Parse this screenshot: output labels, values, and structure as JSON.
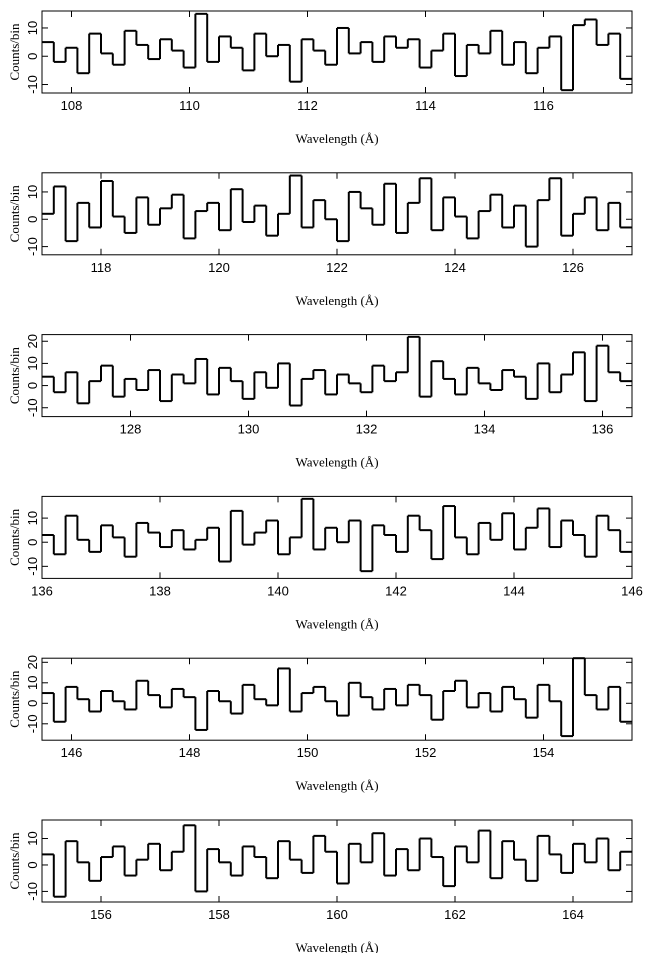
{
  "chart_data": [
    {
      "type": "histogram",
      "xlabel": "Wavelength (Å)",
      "ylabel": "Counts/bin",
      "color": "#000000",
      "bins": [
        107.5,
        107.7,
        107.9,
        108.1,
        108.3,
        108.5,
        108.7,
        108.9,
        109.1,
        109.3,
        109.5,
        109.7,
        109.9,
        110.1,
        110.3,
        110.5,
        110.7,
        110.9,
        111.1,
        111.3,
        111.5,
        111.7,
        111.9,
        112.1,
        112.3,
        112.5,
        112.7,
        112.9,
        113.1,
        113.3,
        113.5,
        113.7,
        113.9,
        114.1,
        114.3,
        114.5,
        114.7,
        114.9,
        115.1,
        115.3,
        115.5,
        115.7,
        115.9,
        116.1,
        116.3,
        116.5,
        116.7,
        116.9,
        117.1,
        117.3,
        117.5
      ],
      "values": [
        5,
        -2,
        3,
        -6,
        8,
        1,
        -3,
        9,
        4,
        -1,
        6,
        2,
        -4,
        15,
        -2,
        7,
        3,
        -5,
        8,
        0,
        4,
        -9,
        6,
        2,
        -3,
        10,
        1,
        5,
        -2,
        7,
        3,
        6,
        -4,
        2,
        8,
        -7,
        4,
        1,
        9,
        -3,
        5,
        -6,
        3,
        7,
        -12,
        11,
        13,
        4,
        8,
        -8
      ],
      "xlim": [
        107.5,
        117.5
      ],
      "xticks": [
        108,
        110,
        112,
        114,
        116
      ],
      "ylim": [
        -13,
        16
      ],
      "yticks": [
        -10,
        0,
        10
      ]
    },
    {
      "type": "histogram",
      "xlabel": "Wavelength (Å)",
      "ylabel": "Counts/bin",
      "color": "#000000",
      "bins": [
        117,
        117.2,
        117.4,
        117.6,
        117.8,
        118,
        118.2,
        118.4,
        118.6,
        118.8,
        119,
        119.2,
        119.4,
        119.6,
        119.8,
        120,
        120.2,
        120.4,
        120.6,
        120.8,
        121,
        121.2,
        121.4,
        121.6,
        121.8,
        122,
        122.2,
        122.4,
        122.6,
        122.8,
        123,
        123.2,
        123.4,
        123.6,
        123.8,
        124,
        124.2,
        124.4,
        124.6,
        124.8,
        125,
        125.2,
        125.4,
        125.6,
        125.8,
        126,
        126.2,
        126.4,
        126.6,
        126.8,
        127
      ],
      "values": [
        2,
        12,
        -8,
        6,
        -3,
        14,
        1,
        -5,
        8,
        -2,
        4,
        9,
        -7,
        3,
        6,
        -4,
        11,
        -1,
        5,
        -6,
        2,
        16,
        -3,
        7,
        0,
        -8,
        10,
        4,
        -2,
        13,
        -5,
        6,
        15,
        -4,
        8,
        1,
        -7,
        3,
        9,
        -3,
        5,
        -10,
        7,
        15,
        -6,
        2,
        8,
        -4,
        6,
        -3
      ],
      "xlim": [
        117,
        127
      ],
      "xticks": [
        118,
        120,
        122,
        124,
        126
      ],
      "ylim": [
        -13,
        17
      ],
      "yticks": [
        -10,
        0,
        10
      ]
    },
    {
      "type": "histogram",
      "xlabel": "Wavelength (Å)",
      "ylabel": "Counts/bin",
      "color": "#000000",
      "bins": [
        126.5,
        126.7,
        126.9,
        127.1,
        127.3,
        127.5,
        127.7,
        127.9,
        128.1,
        128.3,
        128.5,
        128.7,
        128.9,
        129.1,
        129.3,
        129.5,
        129.7,
        129.9,
        130.1,
        130.3,
        130.5,
        130.7,
        130.9,
        131.1,
        131.3,
        131.5,
        131.7,
        131.9,
        132.1,
        132.3,
        132.5,
        132.7,
        132.9,
        133.1,
        133.3,
        133.5,
        133.7,
        133.9,
        134.1,
        134.3,
        134.5,
        134.7,
        134.9,
        135.1,
        135.3,
        135.5,
        135.7,
        135.9,
        136.1,
        136.3,
        136.5
      ],
      "values": [
        4,
        -3,
        6,
        -8,
        2,
        9,
        -5,
        3,
        -2,
        7,
        -7,
        5,
        1,
        12,
        -4,
        8,
        2,
        -6,
        6,
        -1,
        10,
        -9,
        3,
        7,
        -4,
        5,
        1,
        -3,
        9,
        2,
        6,
        22,
        -5,
        11,
        3,
        -4,
        8,
        1,
        -2,
        7,
        4,
        -6,
        10,
        -3,
        5,
        15,
        -7,
        18,
        6,
        2
      ],
      "xlim": [
        126.5,
        136.5
      ],
      "xticks": [
        128,
        130,
        132,
        134,
        136
      ],
      "ylim": [
        -14,
        23
      ],
      "yticks": [
        -10,
        0,
        10,
        20
      ]
    },
    {
      "type": "histogram",
      "xlabel": "Wavelength (Å)",
      "ylabel": "Counts/bin",
      "color": "#000000",
      "bins": [
        136,
        136.2,
        136.4,
        136.6,
        136.8,
        137,
        137.2,
        137.4,
        137.6,
        137.8,
        138,
        138.2,
        138.4,
        138.6,
        138.8,
        139,
        139.2,
        139.4,
        139.6,
        139.8,
        140,
        140.2,
        140.4,
        140.6,
        140.8,
        141,
        141.2,
        141.4,
        141.6,
        141.8,
        142,
        142.2,
        142.4,
        142.6,
        142.8,
        143,
        143.2,
        143.4,
        143.6,
        143.8,
        144,
        144.2,
        144.4,
        144.6,
        144.8,
        145,
        145.2,
        145.4,
        145.6,
        145.8,
        146
      ],
      "values": [
        3,
        -5,
        11,
        1,
        -4,
        7,
        2,
        -6,
        8,
        4,
        -2,
        5,
        -3,
        1,
        6,
        -8,
        13,
        -1,
        4,
        9,
        -5,
        2,
        18,
        -3,
        6,
        0,
        9,
        -12,
        7,
        3,
        -4,
        11,
        5,
        -7,
        15,
        2,
        -5,
        8,
        1,
        12,
        -3,
        6,
        14,
        -2,
        9,
        3,
        -6,
        11,
        5,
        -4
      ],
      "xlim": [
        136,
        146
      ],
      "xticks": [
        136,
        138,
        140,
        142,
        144,
        146
      ],
      "ylim": [
        -15,
        19
      ],
      "yticks": [
        -10,
        0,
        10
      ]
    },
    {
      "type": "histogram",
      "xlabel": "Wavelength (Å)",
      "ylabel": "Counts/bin",
      "color": "#000000",
      "bins": [
        145.5,
        145.7,
        145.9,
        146.1,
        146.3,
        146.5,
        146.7,
        146.9,
        147.1,
        147.3,
        147.5,
        147.7,
        147.9,
        148.1,
        148.3,
        148.5,
        148.7,
        148.9,
        149.1,
        149.3,
        149.5,
        149.7,
        149.9,
        150.1,
        150.3,
        150.5,
        150.7,
        150.9,
        151.1,
        151.3,
        151.5,
        151.7,
        151.9,
        152.1,
        152.3,
        152.5,
        152.7,
        152.9,
        153.1,
        153.3,
        153.5,
        153.7,
        153.9,
        154.1,
        154.3,
        154.5,
        154.7,
        154.9,
        155.1,
        155.3,
        155.5
      ],
      "values": [
        5,
        -9,
        8,
        2,
        -4,
        6,
        1,
        -3,
        11,
        4,
        -2,
        7,
        3,
        -13,
        6,
        1,
        -5,
        9,
        2,
        -1,
        17,
        -4,
        5,
        8,
        1,
        -6,
        10,
        3,
        -3,
        7,
        -1,
        9,
        4,
        -8,
        6,
        11,
        -2,
        5,
        -4,
        8,
        2,
        -7,
        9,
        1,
        -16,
        22,
        4,
        -3,
        8,
        -9
      ],
      "xlim": [
        145.5,
        155.5
      ],
      "xticks": [
        146,
        148,
        150,
        152,
        154
      ],
      "ylim": [
        -18,
        22
      ],
      "yticks": [
        -10,
        0,
        10,
        20
      ]
    },
    {
      "type": "histogram",
      "xlabel": "Wavelength (Å)",
      "ylabel": "Counts/bin",
      "color": "#000000",
      "bins": [
        155,
        155.2,
        155.4,
        155.6,
        155.8,
        156,
        156.2,
        156.4,
        156.6,
        156.8,
        157,
        157.2,
        157.4,
        157.6,
        157.8,
        158,
        158.2,
        158.4,
        158.6,
        158.8,
        159,
        159.2,
        159.4,
        159.6,
        159.8,
        160,
        160.2,
        160.4,
        160.6,
        160.8,
        161,
        161.2,
        161.4,
        161.6,
        161.8,
        162,
        162.2,
        162.4,
        162.6,
        162.8,
        163,
        163.2,
        163.4,
        163.6,
        163.8,
        164,
        164.2,
        164.4,
        164.6,
        164.8,
        165
      ],
      "values": [
        4,
        -12,
        9,
        1,
        -6,
        3,
        7,
        -4,
        2,
        8,
        -2,
        5,
        15,
        -10,
        6,
        1,
        -4,
        7,
        3,
        -5,
        9,
        2,
        -3,
        11,
        5,
        -7,
        8,
        1,
        12,
        -4,
        6,
        -2,
        10,
        3,
        -8,
        7,
        1,
        13,
        -5,
        9,
        2,
        -6,
        11,
        4,
        -3,
        8,
        1,
        10,
        -2,
        5
      ],
      "xlim": [
        155,
        165
      ],
      "xticks": [
        156,
        158,
        160,
        162,
        164
      ],
      "ylim": [
        -14,
        17
      ],
      "yticks": [
        -10,
        0,
        10
      ]
    }
  ]
}
